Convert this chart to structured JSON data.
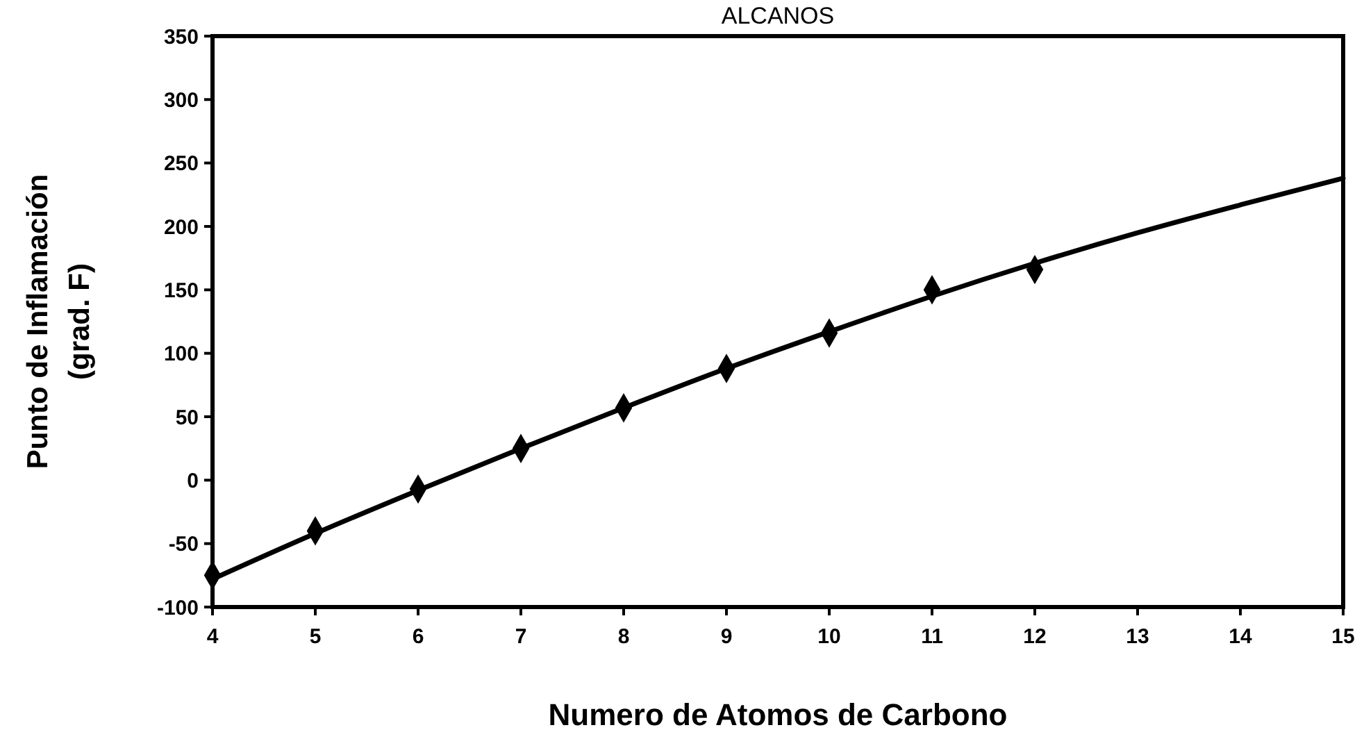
{
  "chart_data": {
    "type": "scatter",
    "title": "ALCANOS",
    "xlabel": "Numero de Atomos de Carbono",
    "ylabel": "Punto de Inflamación\n(grad. F)",
    "series": [
      {
        "color": "#000000",
        "marker": "diamond",
        "x": [
          4,
          5,
          6,
          7,
          8,
          9,
          10,
          11,
          12
        ],
        "values": [
          -75,
          -40,
          -7,
          25,
          57,
          88,
          116,
          150,
          166
        ]
      },
      {
        "type": "line",
        "color": "#000000",
        "marker": "none",
        "line_style": "solid",
        "x": [
          4,
          5,
          6,
          7,
          8,
          9,
          10,
          11,
          12,
          13,
          14,
          15
        ],
        "values": [
          -78,
          -42,
          -8,
          25,
          57,
          88,
          117,
          145,
          171,
          195,
          217,
          238
        ]
      }
    ],
    "xlim": [
      4,
      15
    ],
    "xticks": [
      4,
      5,
      6,
      7,
      8,
      9,
      10,
      11,
      12,
      13,
      14,
      15
    ],
    "ylim": [
      -100,
      350
    ],
    "yticks": [
      -100,
      -50,
      0,
      50,
      100,
      150,
      200,
      250,
      300,
      350
    ],
    "grid": false
  }
}
